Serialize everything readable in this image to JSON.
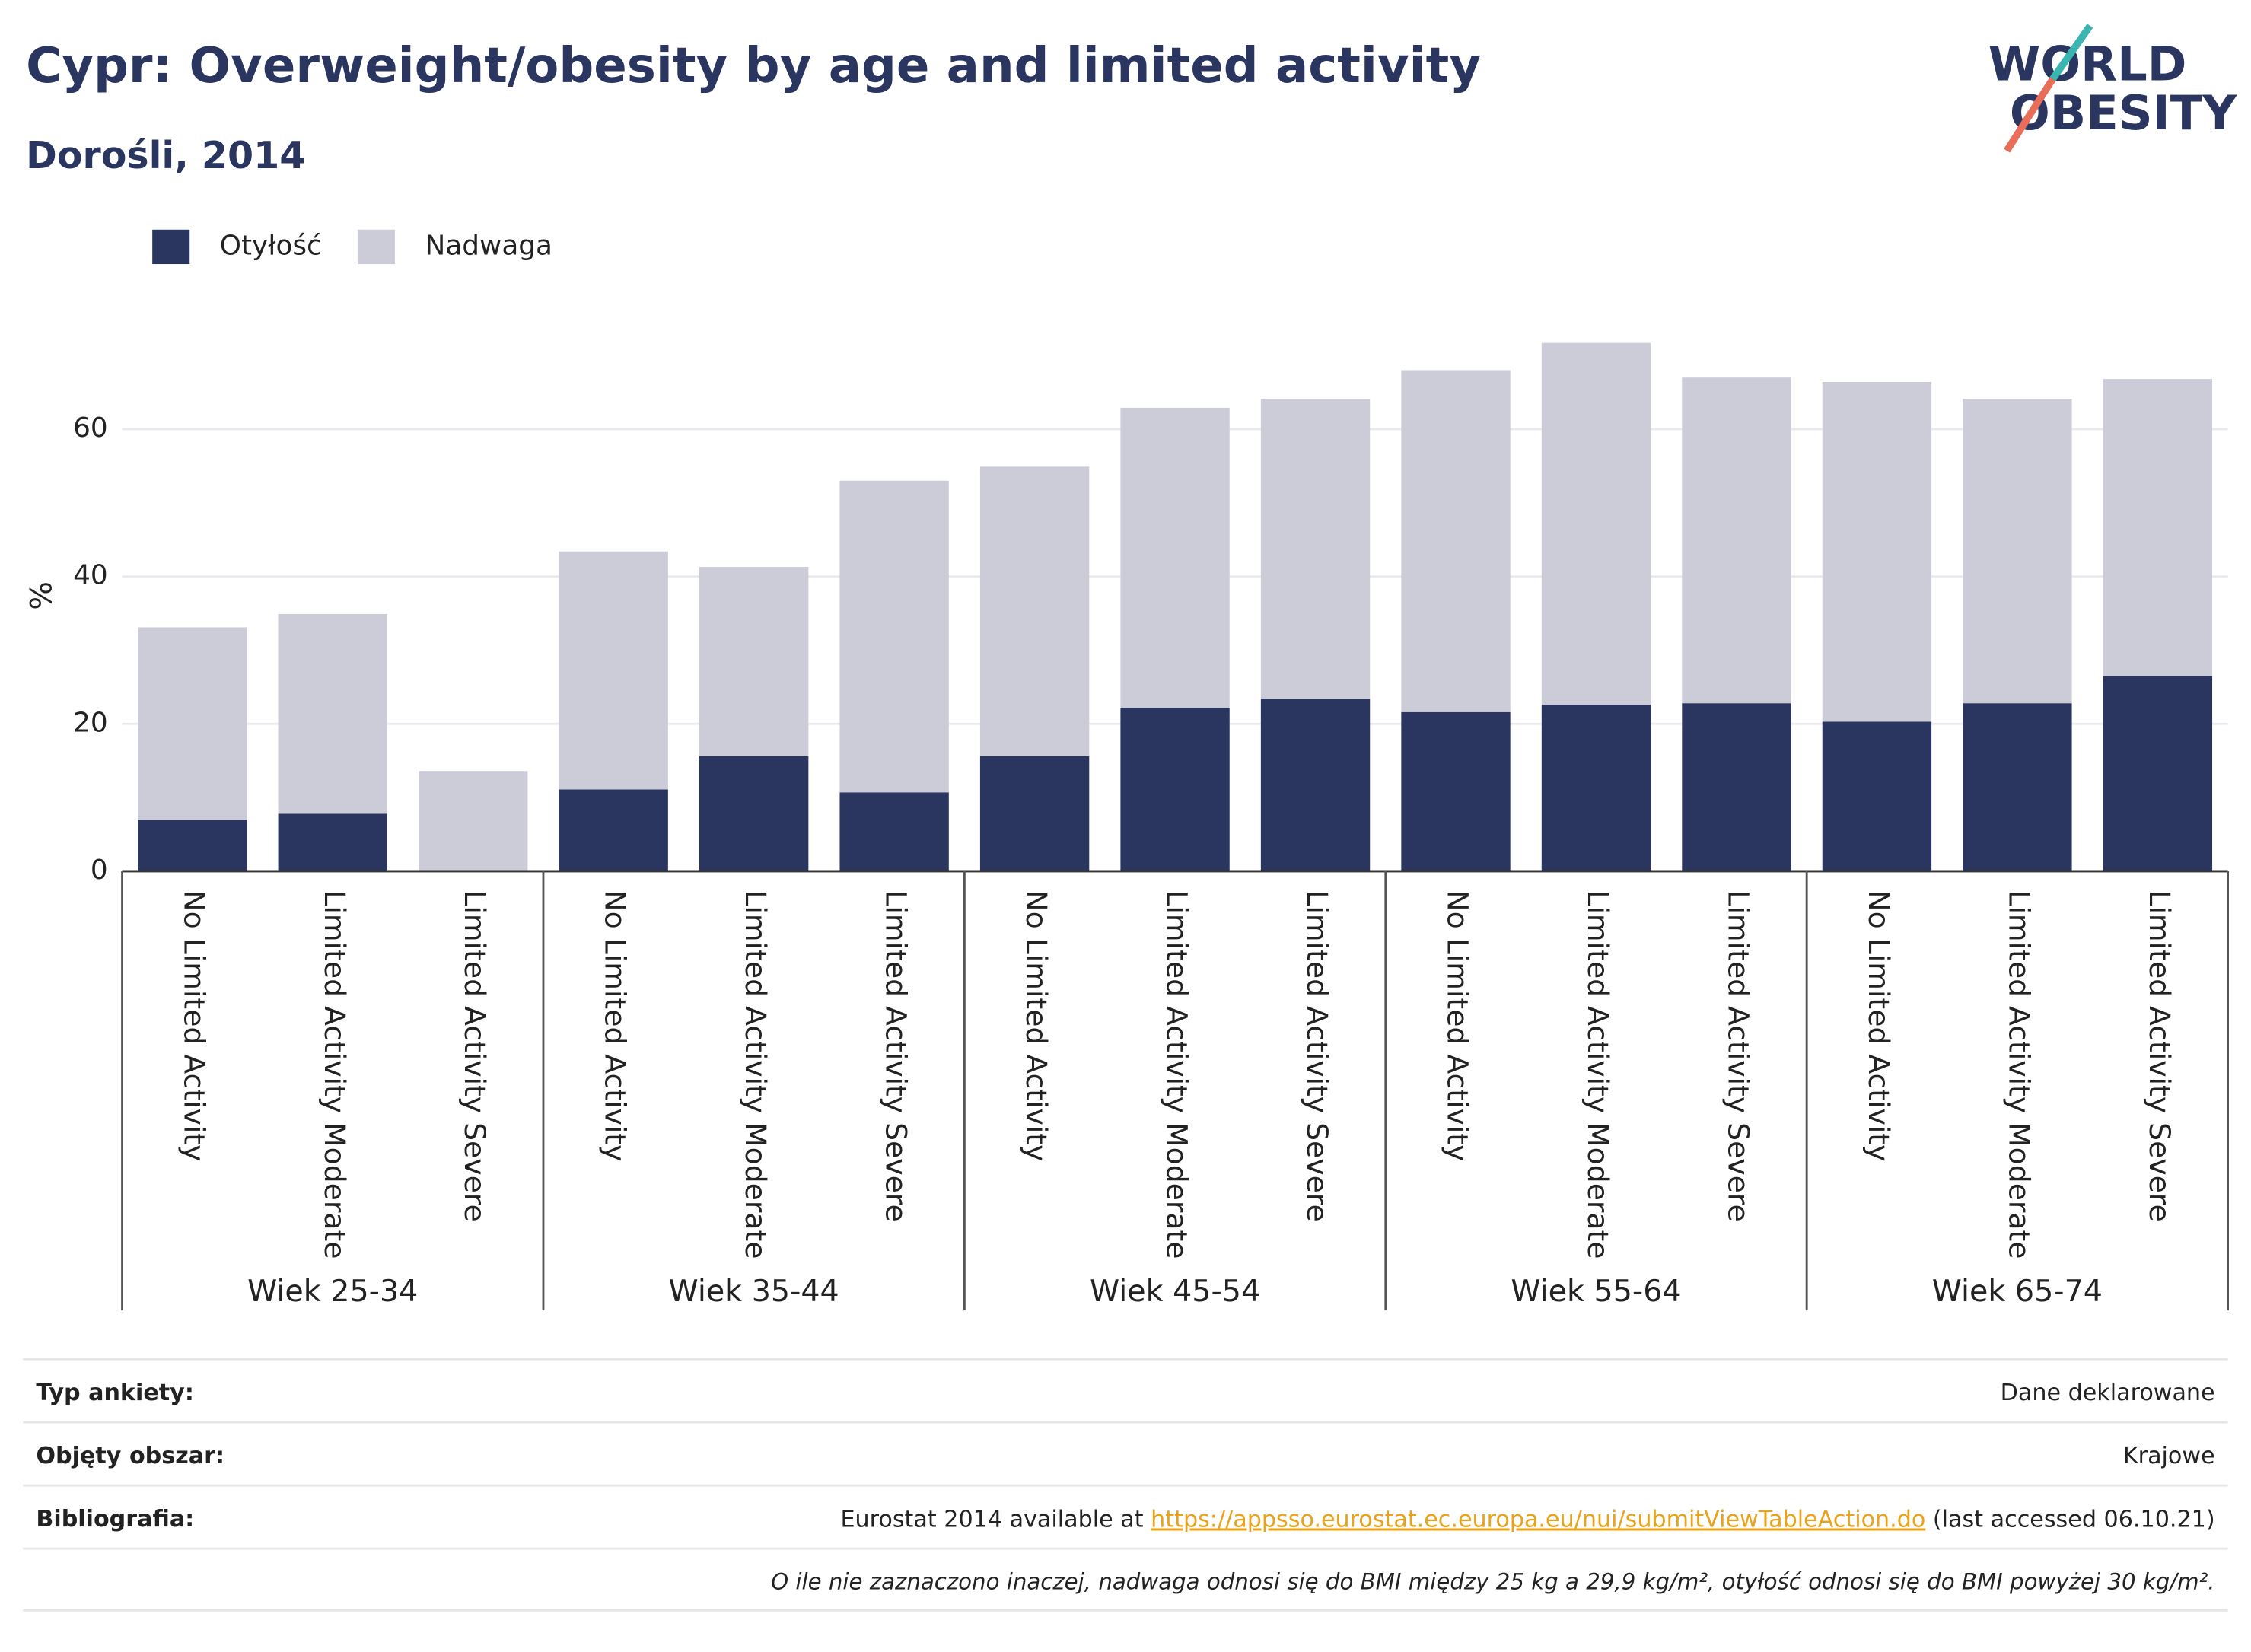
{
  "chart_data": {
    "type": "bar",
    "stacked": true,
    "title": "Cypr: Overweight/obesity by age and limited activity",
    "subtitle": "Dorośli, 2014",
    "y_label": "%",
    "categories": [
      "No Limited Activity",
      "Limited Activity Moderate",
      "Limited Activity Severe",
      "No Limited Activity",
      "Limited Activity Moderate",
      "Limited Activity Severe",
      "No Limited Activity",
      "Limited Activity Moderate",
      "Limited Activity Severe",
      "No Limited Activity",
      "Limited Activity Moderate",
      "Limited Activity Severe",
      "No Limited Activity",
      "Limited Activity Moderate",
      "Limited Activity Severe"
    ],
    "groups": [
      "Wiek 25-34",
      "Wiek 35-44",
      "Wiek 45-54",
      "Wiek 55-64",
      "Wiek 65-74"
    ],
    "series": [
      {
        "name": "Otyłość",
        "color": "#2b3660",
        "values": [
          7.0,
          7.8,
          0,
          11.1,
          15.6,
          10.7,
          15.6,
          22.2,
          23.4,
          21.6,
          22.6,
          22.8,
          20.3,
          22.8,
          26.5
        ]
      },
      {
        "name": "Nadwaga",
        "color": "#cbccd8",
        "values": [
          26.1,
          27.1,
          13.6,
          32.3,
          25.7,
          42.3,
          39.3,
          40.7,
          40.7,
          46.4,
          49.1,
          44.2,
          46.1,
          41.3,
          40.3
        ]
      }
    ],
    "ylim": [
      0,
      75
    ],
    "yticks": [
      0,
      20,
      40,
      60
    ],
    "grid": true,
    "legend": "top-left"
  },
  "logo": {
    "line1": "WORLD",
    "line2": "OBESITY"
  },
  "footer": {
    "rows": [
      {
        "label": "Typ ankiety:",
        "value": "Dane deklarowane"
      },
      {
        "label": "Objęty obszar:",
        "value": "Krajowe"
      }
    ],
    "bibliography": {
      "label": "Bibliografia:",
      "before": "Eurostat 2014 available at ",
      "link": "https://appsso.eurostat.ec.europa.eu/nui/submitViewTableAction.do",
      "after": " (last accessed 06.10.21)"
    },
    "note": "O ile nie zaznaczono inaczej, nadwaga odnosi się do BMI między 25 kg a 29,9 kg/m², otyłość odnosi się do BMI powyżej 30 kg/m²."
  }
}
